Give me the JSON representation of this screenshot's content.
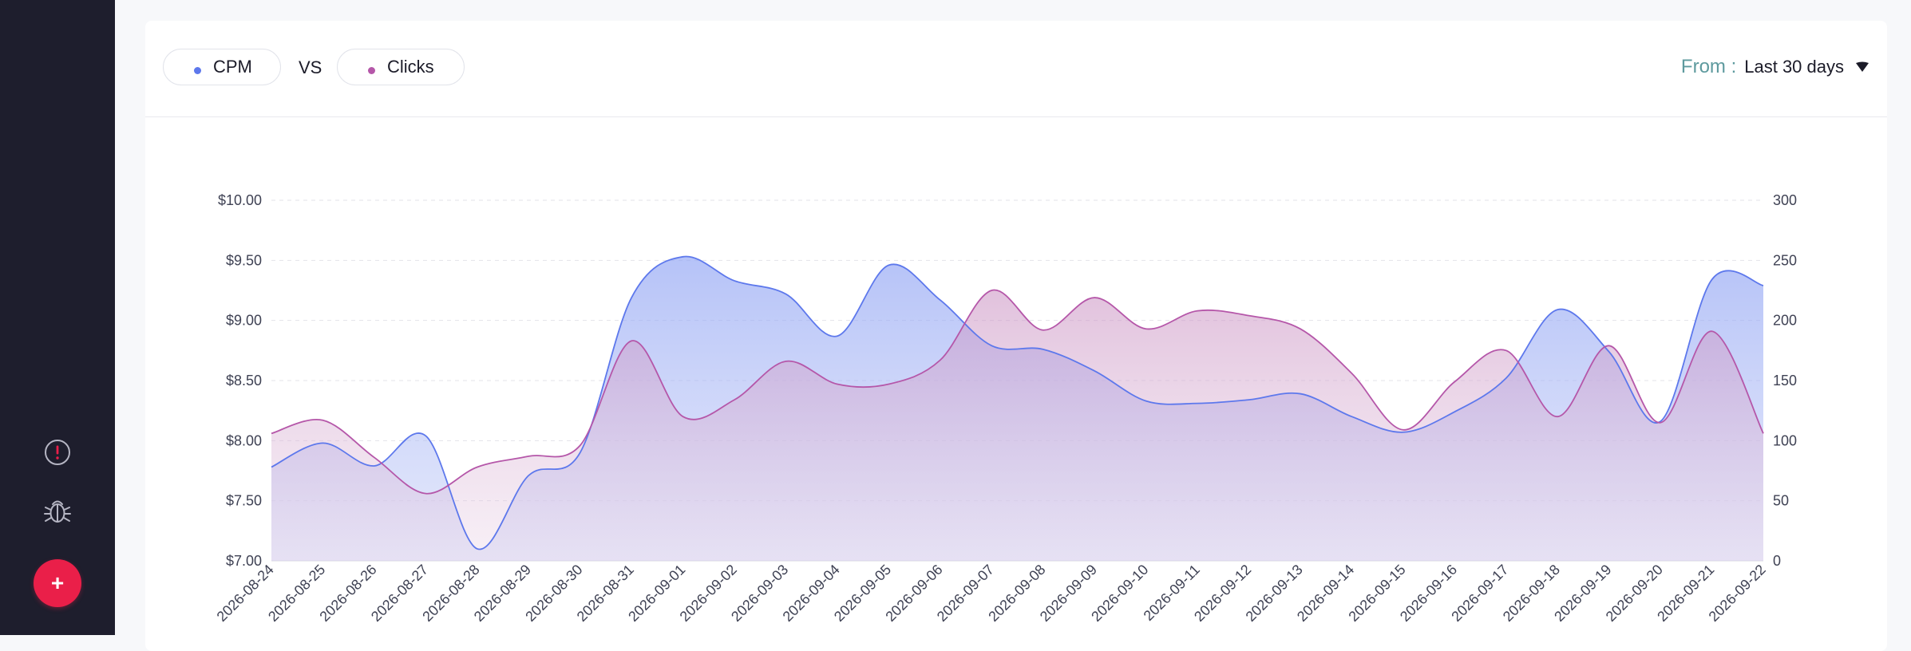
{
  "header": {
    "series_a_label": "CPM",
    "vs_label": "VS",
    "series_b_label": "Clicks",
    "from_label": "From :",
    "range_value": "Last 30 days"
  },
  "sidebar": {
    "icons": [
      "alert-icon",
      "bug-icon"
    ],
    "add_button_label": "+"
  },
  "colors": {
    "cpm": "#5d78ec",
    "clicks": "#b557a9",
    "sidebar_bg": "#1e1e2d",
    "fab": "#ea1f49"
  },
  "chart_data": {
    "type": "area",
    "x": [
      "2026-08-24",
      "2026-08-25",
      "2026-08-26",
      "2026-08-27",
      "2026-08-28",
      "2026-08-29",
      "2026-08-30",
      "2026-08-31",
      "2026-09-01",
      "2026-09-02",
      "2026-09-03",
      "2026-09-04",
      "2026-09-05",
      "2026-09-06",
      "2026-09-07",
      "2026-09-08",
      "2026-09-09",
      "2026-09-10",
      "2026-09-11",
      "2026-09-12",
      "2026-09-13",
      "2026-09-14",
      "2026-09-15",
      "2026-09-16",
      "2026-09-17",
      "2026-09-18",
      "2026-09-19",
      "2026-09-20",
      "2026-09-21",
      "2026-09-22"
    ],
    "series": [
      {
        "name": "CPM",
        "axis": "left",
        "values": [
          7.78,
          7.98,
          7.79,
          8.04,
          7.1,
          7.71,
          7.9,
          9.19,
          9.53,
          9.33,
          9.22,
          8.87,
          9.46,
          9.17,
          8.79,
          8.76,
          8.58,
          8.33,
          8.31,
          8.34,
          8.39,
          8.2,
          8.07,
          8.24,
          8.52,
          9.09,
          8.74,
          8.16,
          9.34,
          9.29
        ]
      },
      {
        "name": "Clicks",
        "axis": "right",
        "values": [
          106,
          117,
          86,
          56,
          78,
          87,
          96,
          183,
          120,
          134,
          166,
          147,
          147,
          167,
          225,
          192,
          219,
          193,
          208,
          204,
          193,
          156,
          109,
          149,
          175,
          120,
          179,
          115,
          191,
          106
        ]
      }
    ],
    "y_left": {
      "min": 7.0,
      "max": 10.0,
      "ticks": [
        "$7.00",
        "$7.50",
        "$8.00",
        "$8.50",
        "$9.00",
        "$9.50",
        "$10.00"
      ]
    },
    "y_right": {
      "min": 0,
      "max": 300,
      "ticks": [
        "0",
        "50",
        "100",
        "150",
        "200",
        "250",
        "300"
      ]
    },
    "grid": true,
    "legend": "top-left"
  }
}
